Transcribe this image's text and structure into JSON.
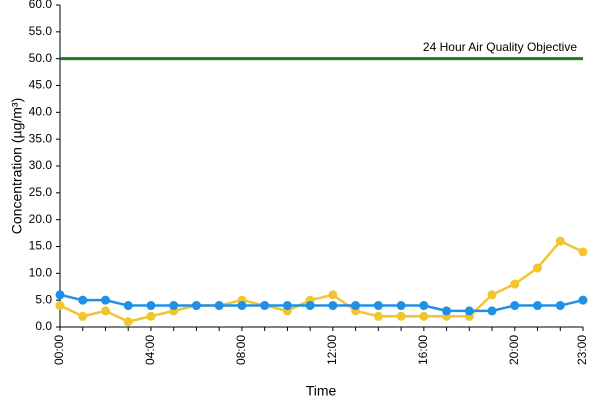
{
  "chart_data": {
    "type": "line",
    "x_label": "Time",
    "y_label": "Concentration (µg/m³)",
    "categories": [
      "00:00",
      null,
      null,
      null,
      "04:00",
      null,
      null,
      null,
      "08:00",
      null,
      null,
      null,
      "12:00",
      null,
      null,
      null,
      "16:00",
      null,
      null,
      null,
      "20:00",
      null,
      null,
      "23:00"
    ],
    "series": [
      {
        "color": "#f2c52e",
        "values": [
          4,
          2,
          3,
          1,
          2,
          3,
          4,
          4,
          5,
          4,
          3,
          5,
          6,
          3,
          2,
          2,
          2,
          2,
          2,
          6,
          8,
          11,
          16,
          14
        ]
      },
      {
        "color": "#1e90e6",
        "values": [
          6,
          5,
          5,
          4,
          4,
          4,
          4,
          4,
          4,
          4,
          4,
          4,
          4,
          4,
          4,
          4,
          4,
          3,
          3,
          3,
          4,
          4,
          4,
          5
        ]
      }
    ],
    "reference_line": {
      "value": 50,
      "label": "24 Hour Air Quality Objective",
      "color": "#1e7a1e"
    },
    "ylim": [
      0,
      60
    ],
    "yticks": [
      {
        "value": 0,
        "label": "0.0"
      },
      {
        "value": 5,
        "label": "5.0"
      },
      {
        "value": 10,
        "label": "10.0"
      },
      {
        "value": 15,
        "label": "15.0"
      },
      {
        "value": 20,
        "label": "20.0"
      },
      {
        "value": 25,
        "label": "25.0"
      },
      {
        "value": 30,
        "label": "30.0"
      },
      {
        "value": 35,
        "label": "35.0"
      },
      {
        "value": 40,
        "label": "40.0"
      },
      {
        "value": 45,
        "label": "45.0"
      },
      {
        "value": 50,
        "label": "50.0"
      },
      {
        "value": 55,
        "label": "55.0"
      },
      {
        "value": 60,
        "label": "60.0"
      }
    ],
    "grid": false
  }
}
